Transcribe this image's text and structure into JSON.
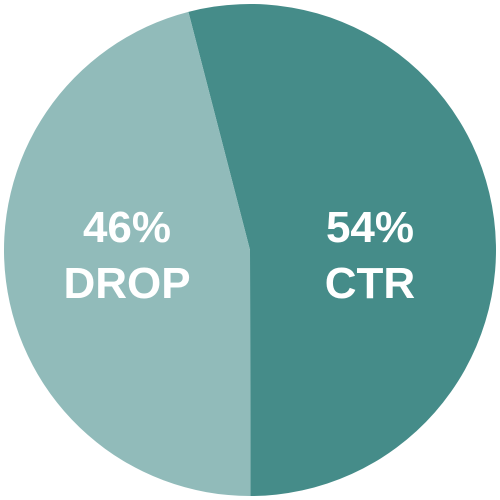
{
  "chart_data": {
    "type": "pie",
    "title": "",
    "slices": [
      {
        "name": "CTR",
        "value": 54,
        "percent_label": "54%",
        "color": "#458C89"
      },
      {
        "name": "DROP",
        "value": 46,
        "percent_label": "46%",
        "color": "#91BBBA"
      }
    ],
    "legend": "none"
  }
}
